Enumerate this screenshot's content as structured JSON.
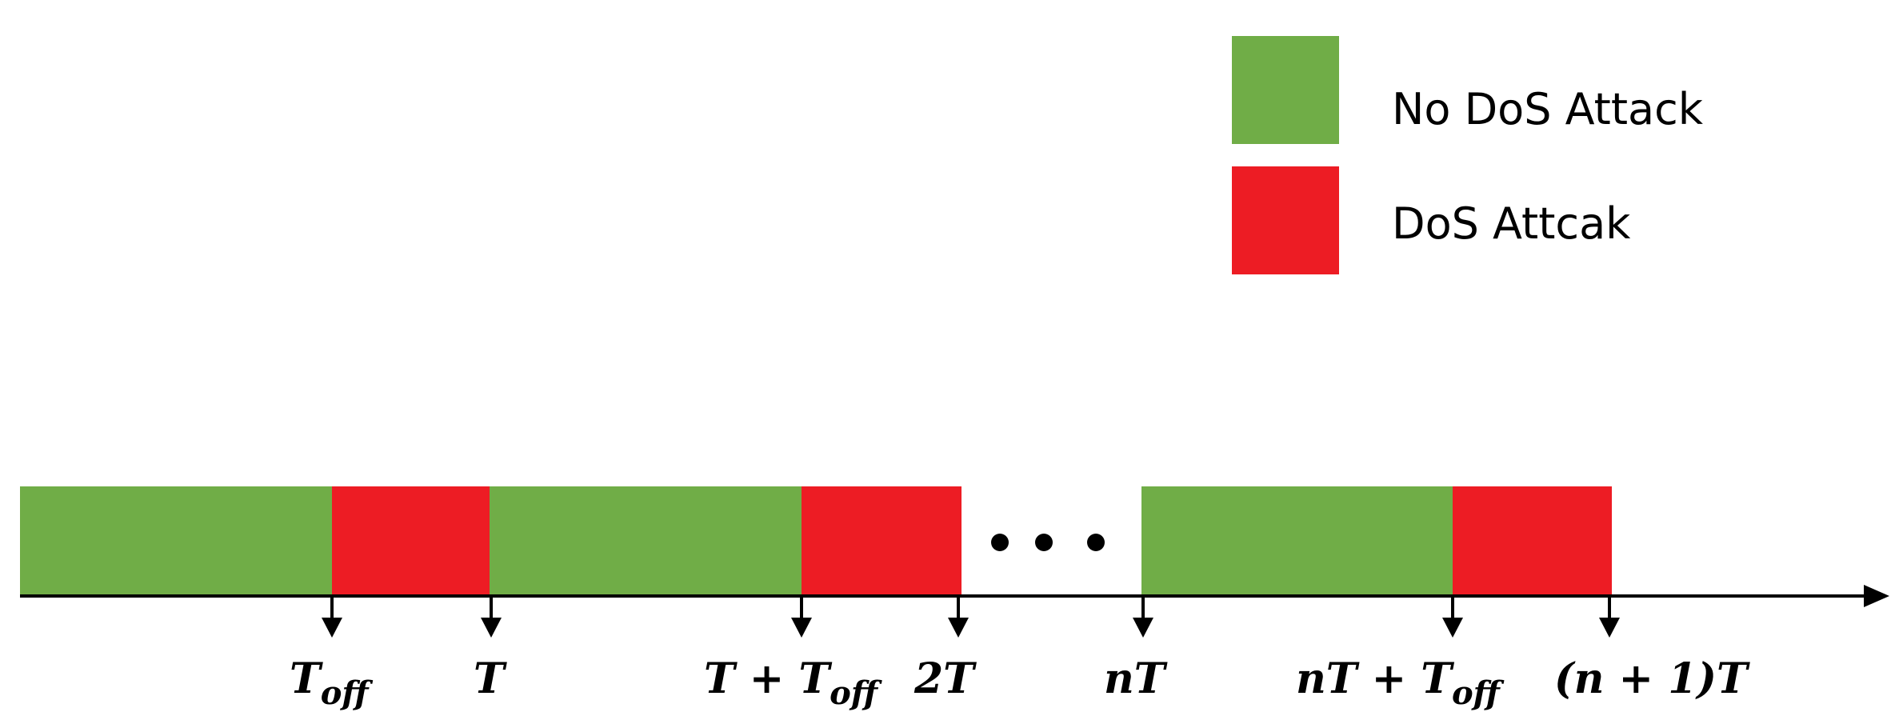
{
  "colors": {
    "no_attack": "#70ad47",
    "attack": "#ed1c24",
    "axis": "#000000"
  },
  "legend": {
    "no_attack_label": "No DoS Attack",
    "attack_label": "DoS Attcak"
  },
  "timeline": {
    "segments": [
      {
        "state": "no_attack"
      },
      {
        "state": "attack"
      },
      {
        "state": "no_attack"
      },
      {
        "state": "attack"
      },
      {
        "state": "no_attack"
      },
      {
        "state": "attack"
      }
    ],
    "ticks": [
      {
        "label": "T",
        "sub": "off"
      },
      {
        "label": "T",
        "sub": ""
      },
      {
        "label": "T + T",
        "sub": "off"
      },
      {
        "label": "2T",
        "sub": ""
      },
      {
        "label": "nT",
        "sub": ""
      },
      {
        "label": "nT + T",
        "sub": "off"
      },
      {
        "label": "(n + 1)T",
        "sub": ""
      }
    ],
    "ellipsis": "• • •"
  }
}
